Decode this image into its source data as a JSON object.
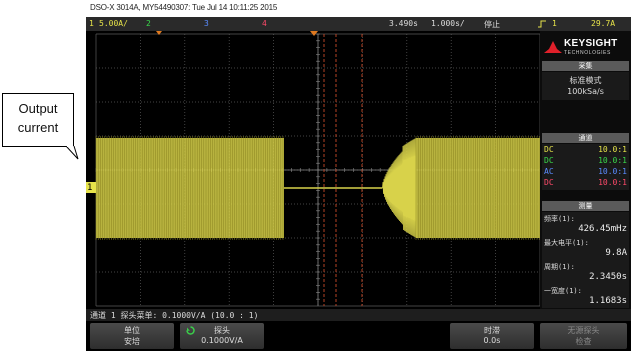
{
  "caption": "DSO-X 3014A, MY54490307: Tue Jul 14 10:11:25 2015",
  "top_bar": {
    "ch1_label": "1",
    "ch1_scale": "5.00A/",
    "ch2_label": "2",
    "ch3_label": "3",
    "ch4_label": "4",
    "time_position": "3.490s",
    "time_scale": "1.000s/",
    "run_state": "停止",
    "trigger_icon": "trigger-rising-edge-icon",
    "trigger_source": "1",
    "trigger_level": "29.7A"
  },
  "brand": {
    "name": "KEYSIGHT",
    "sub": "TECHNOLOGIES"
  },
  "acquisition": {
    "header": "采集",
    "mode": "标准模式",
    "rate": "100kSa/s"
  },
  "channels": {
    "header": "通道",
    "rows": [
      {
        "coupling": "DC",
        "ratio": "10.0:1",
        "color": "#e6e34a"
      },
      {
        "coupling": "DC",
        "ratio": "10.0:1",
        "color": "#39d84a"
      },
      {
        "coupling": "AC",
        "ratio": "10.0:1",
        "color": "#5a8cff"
      },
      {
        "coupling": "DC",
        "ratio": "10.0:1",
        "color": "#ff4a6a"
      }
    ]
  },
  "measurements": {
    "header": "测量",
    "items": [
      {
        "label": "频率(1):",
        "value": "426.45mHz"
      },
      {
        "label": "最大电平(1):",
        "value": "9.8A"
      },
      {
        "label": "周期(1):",
        "value": "2.3450s"
      },
      {
        "label": "一宽度(1):",
        "value": "1.1683s"
      }
    ]
  },
  "probe_bar": "通道 1 探头菜单: 0.1000V/A (10.0 : 1)",
  "softkeys": [
    {
      "line1": "单位",
      "line2": "安培"
    },
    {
      "line1": "探头",
      "line2": "0.1000V/A"
    },
    {
      "line1": "",
      "line2": ""
    },
    {
      "line1": "",
      "line2": ""
    },
    {
      "line1": "时滞",
      "line2": "0.0s"
    },
    {
      "line1": "无源探头",
      "line2": "检查"
    }
  ],
  "ground_marker": "1",
  "callout": {
    "line1": "Output",
    "line2": "current"
  },
  "colors": {
    "trace": "#d8d24a",
    "grid": "#5a5a5a",
    "cursor": "#c84a2a",
    "ch1": "#e6e34a"
  }
}
